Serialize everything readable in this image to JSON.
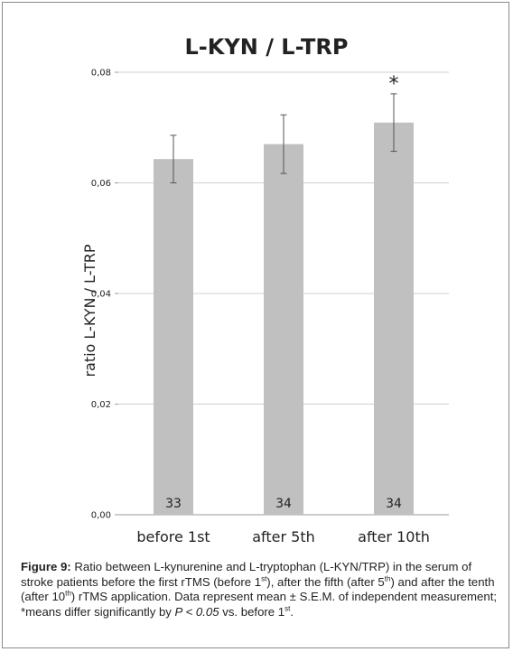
{
  "chart_data": {
    "type": "bar",
    "title": "L-KYN / L-TRP",
    "ylabel": "ratio L-KYN / L-TRP",
    "xlabel": "",
    "categories": [
      "before 1st",
      "after 5th",
      "after 10th"
    ],
    "values": [
      0.0643,
      0.067,
      0.0709
    ],
    "error": [
      0.0043,
      0.0053,
      0.0052
    ],
    "n_labels": [
      "33",
      "34",
      "34"
    ],
    "significance": [
      "",
      "",
      "*"
    ],
    "ylim": [
      0,
      0.08
    ],
    "yticks": [
      0,
      0.02,
      0.04,
      0.06,
      0.08
    ],
    "ytick_labels": [
      "0,00",
      "0,02",
      "0,04",
      "0,06",
      "0,08"
    ],
    "grid": true,
    "colors": {
      "bar": "#c0c0c0",
      "grid": "#d0d0d0",
      "error": "#555555",
      "text": "#222222"
    }
  },
  "caption": {
    "figure_label": "Figure 9:",
    "t1": " Ratio between L-kynurenine and L-tryptophan (L-KYN/TRP) in the serum of stroke patients before the first rTMS (before 1",
    "s1": "st",
    "t2": "), after the fifth (after 5",
    "s2": "th",
    "t3": ") and after the tenth (after 10",
    "s3": "th",
    "t4": ") rTMS application. Data represent mean ± S.E.M. of independent measurement; *means differ significantly by ",
    "italic": "P < 0.05",
    "t5": " vs. before 1",
    "s4": "st",
    "t6": "."
  }
}
